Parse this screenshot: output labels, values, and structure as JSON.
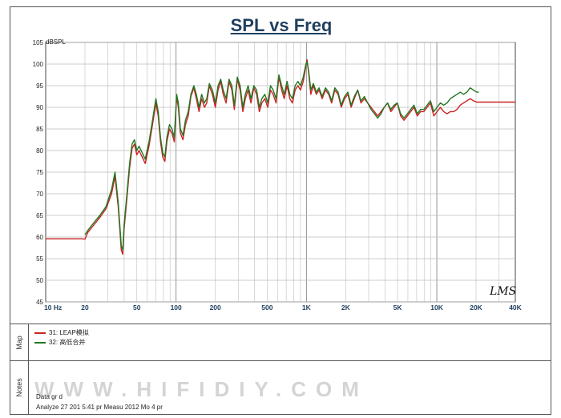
{
  "chart_data": {
    "type": "line",
    "title": "SPL vs Freq",
    "ylabel": "dBSPL",
    "x_scale": "log",
    "xlim": [
      10,
      40000
    ],
    "ylim": [
      45,
      105
    ],
    "grid": true,
    "x_ticks": [
      {
        "v": 10,
        "label": "10  Hz"
      },
      {
        "v": 20,
        "label": "20"
      },
      {
        "v": 50,
        "label": "50"
      },
      {
        "v": 100,
        "label": "100"
      },
      {
        "v": 200,
        "label": "200"
      },
      {
        "v": 500,
        "label": "500"
      },
      {
        "v": 1000,
        "label": "1K"
      },
      {
        "v": 2000,
        "label": "2K"
      },
      {
        "v": 5000,
        "label": "5K"
      },
      {
        "v": 10000,
        "label": "10K"
      },
      {
        "v": 20000,
        "label": "20K"
      },
      {
        "v": 40000,
        "label": "40K"
      }
    ],
    "y_ticks": [
      45,
      50,
      55,
      60,
      65,
      70,
      75,
      80,
      85,
      90,
      95,
      100,
      105
    ],
    "series": [
      {
        "name": "31: LEAP模拟",
        "color": "#cc2222",
        "points": [
          [
            10,
            59.6
          ],
          [
            18,
            59.6
          ],
          [
            19,
            59.6
          ],
          [
            20,
            59.5
          ],
          [
            21,
            61
          ],
          [
            23,
            62.5
          ],
          [
            26,
            64.5
          ],
          [
            29,
            66.5
          ],
          [
            32,
            70
          ],
          [
            34,
            74
          ],
          [
            36,
            67
          ],
          [
            38,
            57
          ],
          [
            39,
            56
          ],
          [
            40,
            62
          ],
          [
            42,
            69
          ],
          [
            44,
            76
          ],
          [
            46,
            80.5
          ],
          [
            48,
            81.5
          ],
          [
            50,
            79
          ],
          [
            52,
            80
          ],
          [
            55,
            78.5
          ],
          [
            58,
            77
          ],
          [
            62,
            81
          ],
          [
            66,
            86
          ],
          [
            70,
            91
          ],
          [
            73,
            88
          ],
          [
            76,
            82
          ],
          [
            79,
            78.5
          ],
          [
            82,
            77.5
          ],
          [
            85,
            82
          ],
          [
            89,
            85
          ],
          [
            93,
            84
          ],
          [
            97,
            82
          ],
          [
            101,
            92.5
          ],
          [
            104,
            90
          ],
          [
            108,
            84
          ],
          [
            113,
            82.5
          ],
          [
            118,
            86
          ],
          [
            124,
            88
          ],
          [
            130,
            92.5
          ],
          [
            137,
            94.5
          ],
          [
            143,
            92
          ],
          [
            150,
            89
          ],
          [
            157,
            92
          ],
          [
            165,
            90
          ],
          [
            172,
            91
          ],
          [
            180,
            95
          ],
          [
            190,
            93
          ],
          [
            200,
            90
          ],
          [
            210,
            94
          ],
          [
            220,
            96
          ],
          [
            230,
            93
          ],
          [
            242,
            91
          ],
          [
            255,
            96
          ],
          [
            268,
            94
          ],
          [
            280,
            89.5
          ],
          [
            295,
            96.5
          ],
          [
            310,
            94
          ],
          [
            325,
            89
          ],
          [
            340,
            92
          ],
          [
            357,
            94
          ],
          [
            375,
            91
          ],
          [
            395,
            94.5
          ],
          [
            415,
            93
          ],
          [
            435,
            89
          ],
          [
            455,
            91
          ],
          [
            480,
            92
          ],
          [
            505,
            90
          ],
          [
            530,
            94
          ],
          [
            555,
            93
          ],
          [
            585,
            91
          ],
          [
            615,
            97
          ],
          [
            645,
            94
          ],
          [
            675,
            92
          ],
          [
            710,
            95
          ],
          [
            745,
            92
          ],
          [
            780,
            91
          ],
          [
            820,
            94
          ],
          [
            860,
            95
          ],
          [
            900,
            94
          ],
          [
            945,
            96
          ],
          [
            990,
            99.5
          ],
          [
            1010,
            101
          ],
          [
            1040,
            98
          ],
          [
            1080,
            93
          ],
          [
            1130,
            95
          ],
          [
            1190,
            93
          ],
          [
            1250,
            94
          ],
          [
            1320,
            92
          ],
          [
            1400,
            94
          ],
          [
            1480,
            93
          ],
          [
            1560,
            91
          ],
          [
            1650,
            94
          ],
          [
            1750,
            93
          ],
          [
            1850,
            90
          ],
          [
            1960,
            92
          ],
          [
            2080,
            93
          ],
          [
            2200,
            90
          ],
          [
            2330,
            92
          ],
          [
            2470,
            94
          ],
          [
            2620,
            91
          ],
          [
            2780,
            92
          ],
          [
            2950,
            91
          ],
          [
            3130,
            90
          ],
          [
            3320,
            89
          ],
          [
            3520,
            88
          ],
          [
            3730,
            89
          ],
          [
            3950,
            90
          ],
          [
            4190,
            91
          ],
          [
            4440,
            89
          ],
          [
            4700,
            90
          ],
          [
            4980,
            91
          ],
          [
            5280,
            88
          ],
          [
            5600,
            87
          ],
          [
            5940,
            88
          ],
          [
            6300,
            89
          ],
          [
            6680,
            90
          ],
          [
            7080,
            88
          ],
          [
            7500,
            89
          ],
          [
            7950,
            89
          ],
          [
            8430,
            90
          ],
          [
            8940,
            91
          ],
          [
            9480,
            88
          ],
          [
            10050,
            89
          ],
          [
            10650,
            90
          ],
          [
            11300,
            89
          ],
          [
            11980,
            88.5
          ],
          [
            12700,
            89
          ],
          [
            13460,
            89
          ],
          [
            14270,
            89.5
          ],
          [
            15130,
            90.5
          ],
          [
            16040,
            91
          ],
          [
            17000,
            91.5
          ],
          [
            18020,
            92
          ],
          [
            19100,
            91.5
          ],
          [
            20250,
            91.2
          ],
          [
            21460,
            91.2
          ],
          [
            40000,
            91.2
          ]
        ]
      },
      {
        "name": "32: 高低合并",
        "color": "#227722",
        "points": [
          [
            20,
            60.5
          ],
          [
            21,
            61.5
          ],
          [
            23,
            63
          ],
          [
            26,
            65
          ],
          [
            29,
            67
          ],
          [
            32,
            71
          ],
          [
            34,
            75
          ],
          [
            36,
            68
          ],
          [
            38,
            58
          ],
          [
            39,
            57
          ],
          [
            40,
            63
          ],
          [
            42,
            70
          ],
          [
            44,
            77
          ],
          [
            46,
            81.5
          ],
          [
            48,
            82.5
          ],
          [
            50,
            80
          ],
          [
            52,
            81
          ],
          [
            55,
            79.5
          ],
          [
            58,
            78
          ],
          [
            62,
            82
          ],
          [
            66,
            87
          ],
          [
            70,
            92
          ],
          [
            73,
            89
          ],
          [
            76,
            83
          ],
          [
            79,
            79.5
          ],
          [
            82,
            78.5
          ],
          [
            85,
            83
          ],
          [
            89,
            86
          ],
          [
            93,
            85
          ],
          [
            97,
            83
          ],
          [
            101,
            93
          ],
          [
            104,
            91
          ],
          [
            108,
            85
          ],
          [
            113,
            83.5
          ],
          [
            118,
            87
          ],
          [
            124,
            89
          ],
          [
            130,
            93
          ],
          [
            137,
            95
          ],
          [
            143,
            93
          ],
          [
            150,
            90
          ],
          [
            157,
            93
          ],
          [
            165,
            91
          ],
          [
            172,
            92
          ],
          [
            180,
            95.5
          ],
          [
            190,
            94
          ],
          [
            200,
            91
          ],
          [
            210,
            95
          ],
          [
            220,
            96.5
          ],
          [
            230,
            94
          ],
          [
            242,
            92
          ],
          [
            255,
            96.5
          ],
          [
            268,
            95
          ],
          [
            280,
            90.5
          ],
          [
            295,
            97
          ],
          [
            310,
            95
          ],
          [
            325,
            90
          ],
          [
            340,
            93
          ],
          [
            357,
            95
          ],
          [
            375,
            92
          ],
          [
            395,
            95
          ],
          [
            415,
            94
          ],
          [
            435,
            90
          ],
          [
            455,
            92
          ],
          [
            480,
            93
          ],
          [
            505,
            91
          ],
          [
            530,
            95
          ],
          [
            555,
            94
          ],
          [
            585,
            92
          ],
          [
            615,
            97.5
          ],
          [
            645,
            95
          ],
          [
            675,
            93
          ],
          [
            710,
            96
          ],
          [
            745,
            93
          ],
          [
            780,
            92
          ],
          [
            820,
            95
          ],
          [
            860,
            96
          ],
          [
            900,
            95
          ],
          [
            945,
            97
          ],
          [
            990,
            100
          ],
          [
            1010,
            100.5
          ],
          [
            1040,
            98.5
          ],
          [
            1080,
            94
          ],
          [
            1130,
            95.5
          ],
          [
            1190,
            93.5
          ],
          [
            1250,
            94.5
          ],
          [
            1320,
            92.5
          ],
          [
            1400,
            94.5
          ],
          [
            1480,
            93.5
          ],
          [
            1560,
            91.5
          ],
          [
            1650,
            94.5
          ],
          [
            1750,
            93.5
          ],
          [
            1850,
            90.5
          ],
          [
            1960,
            92.5
          ],
          [
            2080,
            93.5
          ],
          [
            2200,
            90.5
          ],
          [
            2330,
            92.5
          ],
          [
            2470,
            94
          ],
          [
            2620,
            91.5
          ],
          [
            2780,
            92.5
          ],
          [
            2950,
            91
          ],
          [
            3130,
            89.5
          ],
          [
            3320,
            88.5
          ],
          [
            3520,
            87.5
          ],
          [
            3730,
            88.5
          ],
          [
            3950,
            90
          ],
          [
            4190,
            91
          ],
          [
            4440,
            89.5
          ],
          [
            4700,
            90.5
          ],
          [
            4980,
            91
          ],
          [
            5280,
            88.5
          ],
          [
            5600,
            87.5
          ],
          [
            5940,
            88.5
          ],
          [
            6300,
            89.5
          ],
          [
            6680,
            90.5
          ],
          [
            7080,
            88.5
          ],
          [
            7500,
            89.5
          ],
          [
            7950,
            89.5
          ],
          [
            8430,
            90.5
          ],
          [
            8940,
            91.5
          ],
          [
            9480,
            89
          ],
          [
            10050,
            90
          ],
          [
            10650,
            91
          ],
          [
            11300,
            90.5
          ],
          [
            11980,
            91
          ],
          [
            12700,
            92
          ],
          [
            13460,
            92.5
          ],
          [
            14270,
            93
          ],
          [
            15130,
            93.5
          ],
          [
            16040,
            93
          ],
          [
            17000,
            93.5
          ],
          [
            18020,
            94.5
          ],
          [
            19100,
            94
          ],
          [
            20250,
            93.5
          ],
          [
            21000,
            93.5
          ]
        ]
      }
    ]
  },
  "sections": {
    "map_label": "Map",
    "notes_label": "Notes"
  },
  "notes": {
    "line1": "Data  gr     d",
    "line2": "Analyze      27 201   5:41 pr                      Measu      2012  Mo   4 pr",
    "watermark": "WWW.HIFIDIY.COM",
    "logo": "LMS"
  }
}
